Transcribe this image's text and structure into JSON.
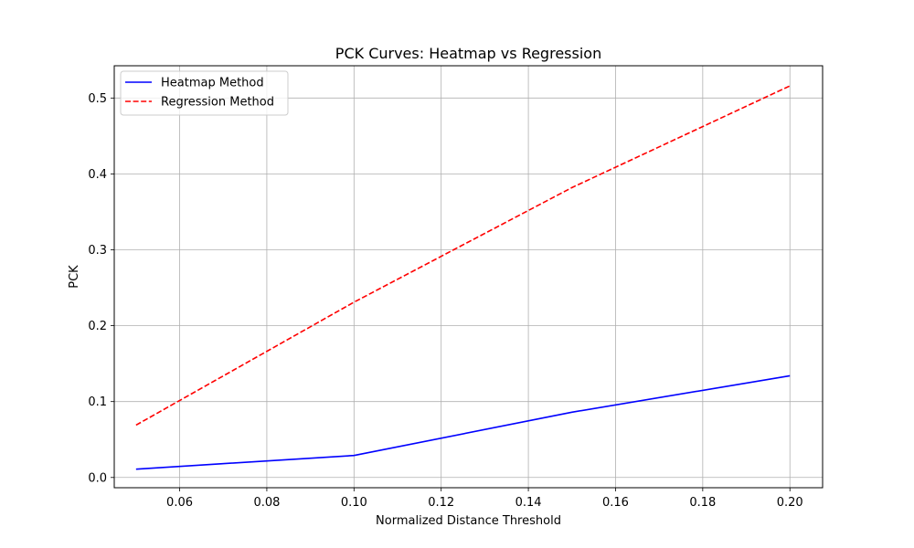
{
  "chart_data": {
    "type": "line",
    "title": "PCK Curves: Heatmap vs Regression",
    "xlabel": "Normalized Distance Threshold",
    "ylabel": "PCK",
    "xlim": [
      0.045,
      0.2075
    ],
    "ylim": [
      -0.0135,
      0.5425
    ],
    "x_ticks": [
      0.06,
      0.08,
      0.1,
      0.12,
      0.14,
      0.16,
      0.18,
      0.2
    ],
    "x_tick_labels": [
      "0.06",
      "0.08",
      "0.10",
      "0.12",
      "0.14",
      "0.16",
      "0.18",
      "0.20"
    ],
    "y_ticks": [
      0.0,
      0.1,
      0.2,
      0.3,
      0.4,
      0.5
    ],
    "y_tick_labels": [
      "0.0",
      "0.1",
      "0.2",
      "0.3",
      "0.4",
      "0.5"
    ],
    "grid": true,
    "legend_position": "top-left",
    "series": [
      {
        "name": "Heatmap Method",
        "color": "#0000ff",
        "style": "solid",
        "x": [
          0.05,
          0.1,
          0.15,
          0.2
        ],
        "y": [
          0.011,
          0.029,
          0.086,
          0.134
        ]
      },
      {
        "name": "Regression Method",
        "color": "#ff0000",
        "style": "dashed",
        "x": [
          0.05,
          0.1,
          0.15,
          0.2
        ],
        "y": [
          0.069,
          0.231,
          0.382,
          0.516
        ]
      }
    ]
  }
}
